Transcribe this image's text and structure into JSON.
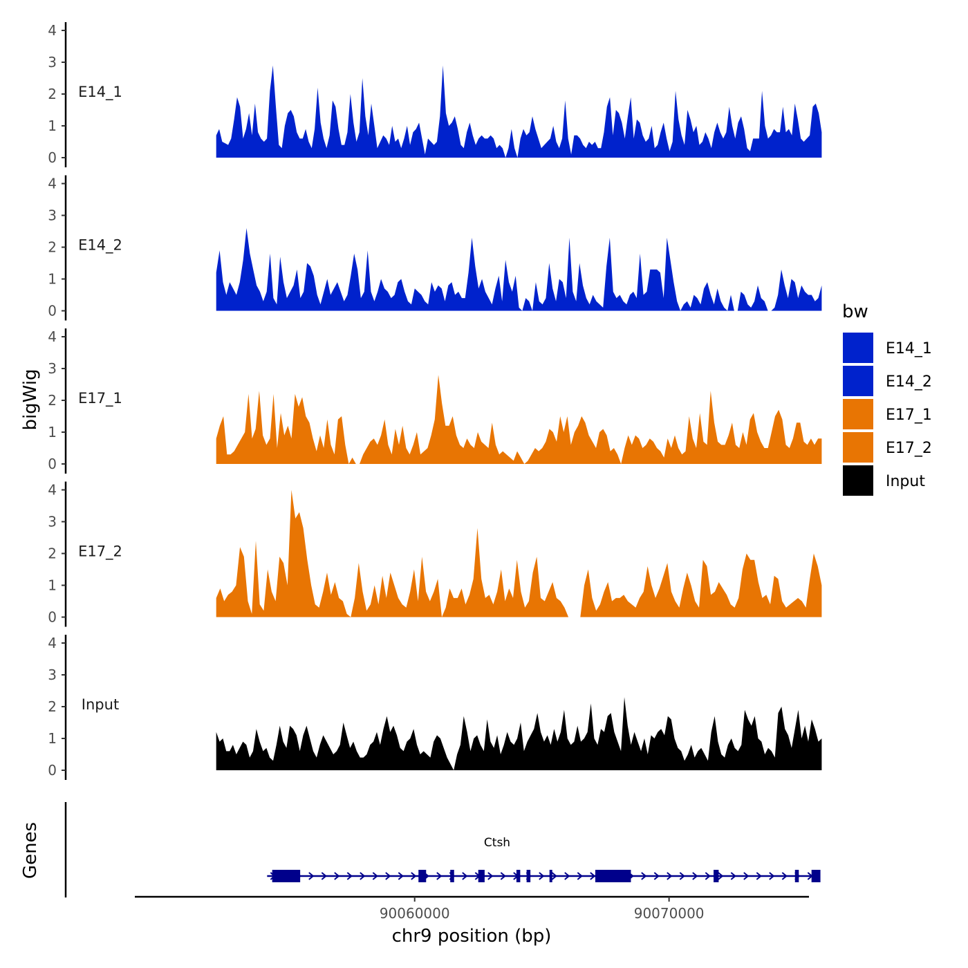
{
  "chart_data": {
    "type": "area",
    "title": "",
    "ylabel": "bigWig",
    "xlabel": "chr9 position (bp)",
    "gene_track_label": "Genes",
    "legend_title": "bw",
    "ylim": [
      0,
      4
    ],
    "yticks": [
      "0",
      "1",
      "2",
      "3",
      "4"
    ],
    "xlim": [
      90049000,
      90075500
    ],
    "xticks": [
      {
        "value": 90060000,
        "label": "90060000"
      },
      {
        "value": 90070000,
        "label": "90070000"
      }
    ],
    "signal_range": [
      90052200,
      90076000
    ],
    "series": [
      {
        "name": "E14_1",
        "label": "E14_1",
        "color": "#0022CC",
        "values": [
          0.7,
          0.9,
          0.5,
          0.45,
          0.4,
          0.6,
          1.2,
          1.9,
          1.6,
          0.6,
          0.9,
          1.4,
          0.7,
          1.7,
          0.8,
          0.6,
          0.5,
          0.6,
          2.1,
          2.9,
          1.6,
          0.4,
          0.3,
          1.0,
          1.4,
          1.5,
          1.3,
          0.8,
          0.6,
          0.6,
          0.9,
          0.5,
          0.3,
          0.9,
          2.2,
          1.1,
          0.6,
          0.3,
          0.7,
          1.8,
          1.6,
          0.9,
          0.4,
          0.4,
          0.8,
          2.0,
          1.1,
          0.5,
          0.8,
          2.5,
          1.3,
          0.7,
          1.7,
          1.0,
          0.3,
          0.5,
          0.7,
          0.6,
          0.4,
          1.0,
          0.5,
          0.6,
          0.3,
          0.6,
          1.0,
          0.4,
          0.8,
          0.9,
          1.1,
          0.6,
          0.1,
          0.6,
          0.5,
          0.4,
          0.5,
          1.3,
          2.9,
          1.4,
          1.0,
          1.1,
          1.3,
          0.9,
          0.4,
          0.3,
          0.8,
          1.1,
          0.7,
          0.4,
          0.6,
          0.7,
          0.6,
          0.6,
          0.7,
          0.6,
          0.3,
          0.4,
          0.3,
          0.0,
          0.3,
          0.9,
          0.3,
          0.0,
          0.6,
          0.9,
          0.7,
          0.8,
          1.3,
          0.9,
          0.6,
          0.3,
          0.4,
          0.5,
          0.6,
          1.0,
          0.5,
          0.3,
          0.6,
          1.8,
          0.6,
          0.1,
          0.7,
          0.7,
          0.6,
          0.4,
          0.3,
          0.5,
          0.4,
          0.5,
          0.3,
          0.3,
          0.8,
          1.6,
          1.9,
          0.7,
          1.5,
          1.4,
          1.1,
          0.6,
          1.3,
          1.9,
          0.6,
          1.2,
          1.1,
          0.7,
          0.5,
          0.6,
          1.0,
          0.3,
          0.4,
          0.8,
          1.1,
          0.6,
          0.2,
          0.5,
          2.1,
          1.2,
          0.7,
          0.4,
          1.5,
          1.2,
          0.8,
          1.0,
          0.4,
          0.5,
          0.8,
          0.6,
          0.3,
          0.8,
          1.1,
          0.8,
          0.6,
          0.8,
          1.6,
          1.0,
          0.6,
          1.1,
          1.3,
          0.9,
          0.3,
          0.2,
          0.6,
          0.6,
          0.6,
          2.1,
          1.0,
          0.6,
          0.7,
          0.9,
          0.8,
          0.8,
          1.6,
          0.8,
          0.9,
          0.7,
          1.7,
          1.2,
          0.6,
          0.5,
          0.6,
          0.7,
          1.6,
          1.7,
          1.4,
          0.8
        ]
      },
      {
        "name": "E14_2",
        "label": "E14_2",
        "color": "#0022CC",
        "values": [
          1.2,
          1.9,
          0.9,
          0.5,
          0.9,
          0.7,
          0.5,
          0.9,
          1.6,
          2.6,
          1.8,
          1.3,
          0.8,
          0.6,
          0.3,
          0.6,
          1.8,
          0.4,
          0.2,
          1.7,
          0.9,
          0.4,
          0.6,
          0.8,
          1.3,
          0.4,
          0.6,
          1.5,
          1.4,
          1.1,
          0.5,
          0.2,
          0.6,
          1.0,
          0.5,
          0.7,
          0.9,
          0.6,
          0.3,
          0.5,
          1.1,
          1.8,
          1.3,
          0.4,
          0.6,
          1.9,
          0.6,
          0.3,
          0.6,
          1.0,
          0.7,
          0.6,
          0.4,
          0.5,
          0.9,
          1.0,
          0.6,
          0.3,
          0.2,
          0.7,
          0.6,
          0.5,
          0.3,
          0.2,
          0.9,
          0.6,
          0.8,
          0.7,
          0.3,
          0.8,
          0.9,
          0.5,
          0.6,
          0.4,
          0.4,
          1.2,
          2.3,
          1.4,
          0.7,
          1.0,
          0.6,
          0.4,
          0.2,
          0.7,
          1.1,
          0.3,
          1.6,
          0.9,
          0.6,
          1.1,
          0.1,
          0.0,
          0.4,
          0.3,
          0.0,
          0.9,
          0.3,
          0.2,
          0.4,
          1.5,
          0.7,
          0.3,
          1.0,
          0.9,
          0.4,
          2.3,
          0.6,
          0.3,
          1.5,
          0.8,
          0.4,
          0.2,
          0.5,
          0.3,
          0.2,
          0.1,
          1.4,
          2.3,
          0.6,
          0.4,
          0.5,
          0.3,
          0.2,
          0.5,
          0.6,
          0.4,
          1.8,
          0.5,
          0.6,
          1.3,
          1.3,
          1.3,
          1.2,
          0.4,
          2.3,
          1.6,
          0.9,
          0.3,
          0.0,
          0.2,
          0.3,
          0.1,
          0.5,
          0.4,
          0.2,
          0.7,
          0.9,
          0.5,
          0.2,
          0.7,
          0.3,
          0.1,
          0.0,
          0.5,
          0.0,
          0.0,
          0.6,
          0.5,
          0.2,
          0.1,
          0.3,
          0.8,
          0.4,
          0.3,
          0.0,
          0.0,
          0.1,
          0.5,
          1.3,
          0.8,
          0.4,
          1.0,
          0.9,
          0.4,
          0.8,
          0.6,
          0.5,
          0.5,
          0.3,
          0.4,
          0.8
        ]
      },
      {
        "name": "E17_1",
        "label": "E17_1",
        "color": "#E87503",
        "values": [
          0.8,
          1.2,
          1.5,
          0.3,
          0.3,
          0.4,
          0.6,
          0.8,
          1.0,
          2.2,
          0.8,
          1.1,
          2.3,
          0.9,
          0.6,
          0.8,
          2.2,
          0.5,
          1.6,
          0.9,
          1.2,
          0.8,
          2.2,
          1.8,
          2.1,
          1.5,
          1.3,
          0.8,
          0.4,
          0.9,
          0.5,
          1.4,
          0.6,
          0.3,
          1.4,
          1.5,
          0.6,
          0.0,
          0.2,
          0.0,
          0.0,
          0.3,
          0.5,
          0.7,
          0.8,
          0.6,
          0.9,
          1.4,
          0.6,
          0.3,
          1.1,
          0.6,
          1.2,
          0.5,
          0.3,
          0.6,
          1.0,
          0.3,
          0.4,
          0.5,
          0.9,
          1.4,
          2.8,
          1.9,
          1.2,
          1.2,
          1.5,
          0.9,
          0.6,
          0.5,
          0.8,
          0.6,
          0.5,
          1.0,
          0.7,
          0.6,
          0.5,
          1.3,
          0.6,
          0.3,
          0.4,
          0.3,
          0.2,
          0.1,
          0.4,
          0.2,
          0.0,
          0.1,
          0.3,
          0.5,
          0.4,
          0.5,
          0.7,
          1.1,
          1.0,
          0.7,
          1.5,
          1.0,
          1.5,
          0.6,
          1.0,
          1.2,
          1.5,
          1.3,
          0.9,
          0.7,
          0.5,
          1.0,
          1.1,
          0.9,
          0.4,
          0.5,
          0.3,
          0.0,
          0.5,
          0.9,
          0.6,
          0.9,
          0.8,
          0.5,
          0.6,
          0.8,
          0.7,
          0.5,
          0.4,
          0.2,
          0.8,
          0.5,
          0.9,
          0.5,
          0.3,
          0.4,
          1.5,
          0.8,
          0.5,
          1.6,
          0.7,
          0.6,
          2.3,
          1.3,
          0.7,
          0.6,
          0.6,
          0.9,
          1.3,
          0.6,
          0.5,
          1.0,
          0.6,
          1.4,
          1.6,
          1.0,
          0.7,
          0.5,
          0.5,
          1.0,
          1.5,
          1.7,
          1.4,
          0.6,
          0.5,
          0.8,
          1.3,
          1.3,
          0.7,
          0.6,
          0.8,
          0.6,
          0.8,
          0.8
        ]
      },
      {
        "name": "E17_2",
        "label": "E17_2",
        "color": "#E87503",
        "values": [
          0.6,
          0.9,
          0.5,
          0.7,
          0.8,
          1.0,
          2.2,
          1.9,
          0.5,
          0.1,
          2.4,
          0.4,
          0.2,
          1.5,
          0.8,
          0.5,
          1.9,
          1.7,
          1.0,
          4.1,
          3.1,
          3.3,
          2.8,
          1.8,
          1.0,
          0.4,
          0.3,
          0.8,
          1.4,
          0.7,
          1.1,
          0.6,
          0.5,
          0.1,
          0.0,
          0.6,
          1.7,
          0.8,
          0.2,
          0.4,
          1.0,
          0.4,
          1.3,
          0.6,
          1.4,
          1.0,
          0.6,
          0.4,
          0.3,
          0.8,
          1.5,
          0.5,
          1.9,
          0.8,
          0.5,
          0.8,
          1.2,
          0.0,
          0.3,
          0.9,
          0.6,
          0.6,
          0.9,
          0.4,
          0.7,
          1.2,
          2.8,
          1.2,
          0.6,
          0.7,
          0.4,
          0.8,
          1.5,
          0.5,
          0.9,
          0.6,
          1.8,
          0.8,
          0.3,
          0.5,
          1.4,
          1.9,
          0.6,
          0.5,
          0.8,
          1.1,
          0.6,
          0.5,
          0.3,
          0.0,
          0.0,
          0.0,
          0.0,
          1.0,
          1.5,
          0.6,
          0.2,
          0.4,
          0.8,
          1.1,
          0.5,
          0.6,
          0.6,
          0.7,
          0.5,
          0.4,
          0.3,
          0.6,
          0.8,
          1.6,
          1.0,
          0.6,
          0.9,
          1.3,
          1.7,
          0.8,
          0.5,
          0.3,
          0.9,
          1.4,
          1.0,
          0.5,
          0.3,
          1.8,
          1.6,
          0.7,
          0.8,
          1.1,
          0.9,
          0.7,
          0.4,
          0.3,
          0.6,
          1.5,
          2.0,
          1.8,
          1.8,
          1.1,
          0.6,
          0.7,
          0.4,
          1.3,
          1.2,
          0.5,
          0.3,
          0.4,
          0.5,
          0.6,
          0.5,
          0.3,
          1.2,
          2.0,
          1.6,
          1.0
        ]
      },
      {
        "name": "Input",
        "label": "Input",
        "color": "#000000",
        "values": [
          1.2,
          0.9,
          1.0,
          0.6,
          0.6,
          0.8,
          0.5,
          0.7,
          0.9,
          0.8,
          0.4,
          0.6,
          1.3,
          0.9,
          0.6,
          0.7,
          0.4,
          0.3,
          0.8,
          1.4,
          0.9,
          0.7,
          1.4,
          1.3,
          1.1,
          0.6,
          1.1,
          1.4,
          1.0,
          0.6,
          0.4,
          0.8,
          1.1,
          0.9,
          0.7,
          0.5,
          0.6,
          0.8,
          1.5,
          1.1,
          0.7,
          0.9,
          0.6,
          0.4,
          0.4,
          0.5,
          0.8,
          0.9,
          1.2,
          0.8,
          1.3,
          1.7,
          1.2,
          1.4,
          1.1,
          0.7,
          0.6,
          0.9,
          1.0,
          1.3,
          0.8,
          0.5,
          0.6,
          0.5,
          0.4,
          0.9,
          1.1,
          1.0,
          0.7,
          0.4,
          0.2,
          0.0,
          0.5,
          0.8,
          1.7,
          1.2,
          0.6,
          1.0,
          1.1,
          0.8,
          0.6,
          1.6,
          0.9,
          0.7,
          1.1,
          0.5,
          0.8,
          1.2,
          0.9,
          0.8,
          1.0,
          1.5,
          0.6,
          0.9,
          1.1,
          1.3,
          1.8,
          1.2,
          0.9,
          1.1,
          0.8,
          1.3,
          0.9,
          1.2,
          1.9,
          1.0,
          0.8,
          0.9,
          1.4,
          0.9,
          1.0,
          1.2,
          2.1,
          1.0,
          0.8,
          1.3,
          1.2,
          1.7,
          1.8,
          1.2,
          0.9,
          0.6,
          2.3,
          1.4,
          0.8,
          1.2,
          0.9,
          0.6,
          1.0,
          0.5,
          1.1,
          1.0,
          1.2,
          1.3,
          1.1,
          1.7,
          1.6,
          1.0,
          0.7,
          0.6,
          0.3,
          0.5,
          0.8,
          0.4,
          0.6,
          0.7,
          0.5,
          0.3,
          1.2,
          1.7,
          0.9,
          0.5,
          0.4,
          0.8,
          1.0,
          0.7,
          0.6,
          0.8,
          1.9,
          1.6,
          1.4,
          1.7,
          1.0,
          0.9,
          0.5,
          0.7,
          0.6,
          0.4,
          1.8,
          2.0,
          1.3,
          1.1,
          0.7,
          1.3,
          1.9,
          1.0,
          1.4,
          0.9,
          1.6,
          1.3,
          0.9,
          1.0
        ]
      }
    ],
    "legend": [
      {
        "label": "E14_1",
        "color": "#0022CC"
      },
      {
        "label": "E14_2",
        "color": "#0022CC"
      },
      {
        "label": "E17_1",
        "color": "#E87503"
      },
      {
        "label": "E17_2",
        "color": "#E87503"
      },
      {
        "label": "Input",
        "color": "#000000"
      }
    ],
    "gene": {
      "name": "Ctsh",
      "color": "#00008B",
      "start": 90054200,
      "end": 90075900,
      "strand": "+",
      "exons": [
        [
          90054400,
          90055500
        ],
        [
          90060150,
          90060450
        ],
        [
          90061400,
          90061550
        ],
        [
          90062500,
          90062750
        ],
        [
          90064000,
          90064150
        ],
        [
          90064400,
          90064550
        ],
        [
          90065300,
          90065400
        ],
        [
          90067100,
          90068500
        ],
        [
          90071750,
          90071950
        ],
        [
          90074950,
          90075100
        ],
        [
          90075600,
          90075950
        ]
      ]
    }
  }
}
